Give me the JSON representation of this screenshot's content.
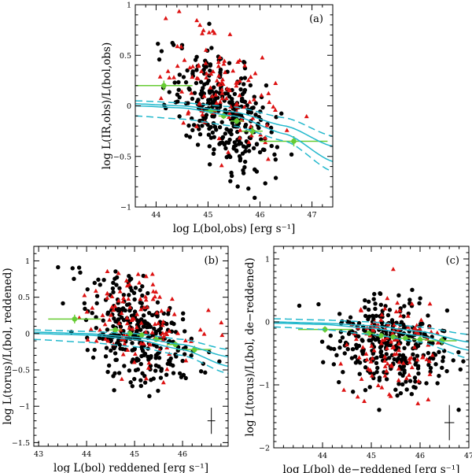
{
  "colors": {
    "black_points": "#000000",
    "red_triangles": "#dd1111",
    "green_binned": "#66cc33",
    "cyan_model": "#22b8cc"
  },
  "chart_data": [
    {
      "type": "scatter",
      "panel": "(a)",
      "xlabel": "log L(bol,obs) [erg s⁻¹]",
      "ylabel": "log L(IR,obs)/L(bol,obs)",
      "xlim": [
        43.6,
        47.4
      ],
      "ylim": [
        -1,
        1
      ],
      "xticks": [
        44,
        45,
        46,
        47
      ],
      "yticks": [
        -1,
        -0.5,
        0,
        0.5,
        1
      ],
      "ytick_labels": [
        "−1",
        "−0.5",
        "0",
        "0.5",
        "1"
      ],
      "cloud": {
        "n_black": 330,
        "n_red": 120,
        "x_center": 45.3,
        "x_sd": 0.5,
        "y_intercept": -0.05,
        "y_slope": -0.28,
        "y_sd": 0.26,
        "red_y_offset": 0.22
      },
      "binned_points": [
        {
          "x": 44.15,
          "y": 0.2,
          "xerr": 0.55,
          "yerr": 0.05
        },
        {
          "x": 45.05,
          "y": -0.05,
          "xerr": 0.12,
          "yerr": 0.03
        },
        {
          "x": 45.3,
          "y": -0.1,
          "xerr": 0.1,
          "yerr": 0.03
        },
        {
          "x": 45.55,
          "y": -0.15,
          "xerr": 0.12,
          "yerr": 0.03
        },
        {
          "x": 45.85,
          "y": -0.25,
          "xerr": 0.2,
          "yerr": 0.04
        },
        {
          "x": 46.65,
          "y": -0.35,
          "xerr": 0.65,
          "yerr": 0.05
        }
      ],
      "model_curves": [
        {
          "style": "solid",
          "x": [
            43.6,
            44.5,
            45.5,
            46.5,
            47.4
          ],
          "y": [
            0.0,
            -0.02,
            -0.1,
            -0.28,
            -0.55
          ]
        },
        {
          "style": "solid",
          "x": [
            43.6,
            44.5,
            45.5,
            46.5,
            47.4
          ],
          "y": [
            0.02,
            0.0,
            -0.06,
            -0.2,
            -0.4
          ]
        },
        {
          "style": "dashed",
          "x": [
            43.6,
            44.5,
            45.5,
            46.5,
            47.4
          ],
          "y": [
            0.05,
            0.03,
            -0.01,
            -0.12,
            -0.3
          ]
        },
        {
          "style": "dashed",
          "x": [
            43.6,
            44.5,
            45.5,
            46.5,
            47.4
          ],
          "y": [
            -0.1,
            -0.13,
            -0.2,
            -0.35,
            -0.65
          ]
        }
      ],
      "error_cross": null
    },
    {
      "type": "scatter",
      "panel": "(b)",
      "xlabel": "log L(bol) reddened [erg s⁻¹]",
      "ylabel": "log L(torus)/L(bol, reddened)",
      "xlim": [
        42.9,
        46.95
      ],
      "ylim": [
        -1.55,
        1.2
      ],
      "xticks": [
        43,
        44,
        45,
        46
      ],
      "yticks": [
        -1.5,
        -1,
        -0.5,
        0,
        0.5,
        1
      ],
      "ytick_labels": [
        "−1.5",
        "−1",
        "−0.5",
        "0",
        "0.5",
        "1"
      ],
      "cloud": {
        "n_black": 320,
        "n_red": 115,
        "x_center": 45.1,
        "x_sd": 0.6,
        "y_intercept": 0.0,
        "y_slope": -0.25,
        "y_sd": 0.35,
        "red_y_offset": 0.18
      },
      "binned_points": [
        {
          "x": 43.75,
          "y": 0.2,
          "xerr": 0.55,
          "yerr": 0.06
        },
        {
          "x": 44.6,
          "y": 0.05,
          "xerr": 0.12,
          "yerr": 0.04
        },
        {
          "x": 44.9,
          "y": 0.0,
          "xerr": 0.1,
          "yerr": 0.03
        },
        {
          "x": 45.15,
          "y": -0.02,
          "xerr": 0.1,
          "yerr": 0.03
        },
        {
          "x": 45.45,
          "y": -0.08,
          "xerr": 0.12,
          "yerr": 0.03
        },
        {
          "x": 45.85,
          "y": -0.15,
          "xerr": 0.18,
          "yerr": 0.04
        },
        {
          "x": 46.25,
          "y": -0.22,
          "xerr": 0.35,
          "yerr": 0.05
        }
      ],
      "model_curves": [
        {
          "style": "solid",
          "x": [
            42.9,
            44.0,
            45.0,
            46.0,
            46.95
          ],
          "y": [
            0.0,
            -0.02,
            -0.08,
            -0.22,
            -0.45
          ]
        },
        {
          "style": "solid",
          "x": [
            42.9,
            44.0,
            45.0,
            46.0,
            46.95
          ],
          "y": [
            0.02,
            0.0,
            -0.05,
            -0.15,
            -0.32
          ]
        },
        {
          "style": "dashed",
          "x": [
            42.9,
            44.0,
            45.0,
            46.0,
            46.95
          ],
          "y": [
            0.05,
            0.03,
            0.0,
            -0.08,
            -0.22
          ]
        },
        {
          "style": "dashed",
          "x": [
            42.9,
            44.0,
            45.0,
            46.0,
            46.95
          ],
          "y": [
            -0.08,
            -0.12,
            -0.18,
            -0.3,
            -0.55
          ]
        }
      ],
      "error_cross": {
        "x": 46.6,
        "y": -1.2,
        "xerr": 0.08,
        "yerr": 0.18
      }
    },
    {
      "type": "scatter",
      "panel": "(c)",
      "xlabel": "log L(bol) de−reddened [erg s⁻¹]",
      "ylabel": "log L(torus)/L(bol, de−reddened)",
      "xlim": [
        43.0,
        47.0
      ],
      "ylim": [
        -2.0,
        1.2
      ],
      "xticks": [
        44,
        45,
        46,
        47
      ],
      "yticks": [
        -2,
        -1,
        0,
        1
      ],
      "ytick_labels": [
        "−2",
        "−1",
        "0",
        "1"
      ],
      "cloud": {
        "n_black": 320,
        "n_red": 115,
        "x_center": 45.4,
        "x_sd": 0.55,
        "y_intercept": -0.35,
        "y_slope": -0.05,
        "y_sd": 0.38,
        "red_y_offset": -0.05
      },
      "binned_points": [
        {
          "x": 44.05,
          "y": -0.12,
          "xerr": 0.55,
          "yerr": 0.05
        },
        {
          "x": 44.95,
          "y": -0.18,
          "xerr": 0.12,
          "yerr": 0.04
        },
        {
          "x": 45.2,
          "y": -0.22,
          "xerr": 0.1,
          "yerr": 0.04
        },
        {
          "x": 45.45,
          "y": -0.24,
          "xerr": 0.1,
          "yerr": 0.04
        },
        {
          "x": 45.7,
          "y": -0.26,
          "xerr": 0.12,
          "yerr": 0.04
        },
        {
          "x": 46.0,
          "y": -0.28,
          "xerr": 0.15,
          "yerr": 0.05
        },
        {
          "x": 46.45,
          "y": -0.3,
          "xerr": 0.3,
          "yerr": 0.06
        }
      ],
      "model_curves": [
        {
          "style": "solid",
          "x": [
            43.0,
            44.0,
            45.0,
            46.0,
            47.0
          ],
          "y": [
            -0.02,
            -0.04,
            -0.1,
            -0.22,
            -0.45
          ]
        },
        {
          "style": "solid",
          "x": [
            43.0,
            44.0,
            45.0,
            46.0,
            47.0
          ],
          "y": [
            0.0,
            -0.02,
            -0.06,
            -0.15,
            -0.32
          ]
        },
        {
          "style": "dashed",
          "x": [
            43.0,
            44.0,
            45.0,
            46.0,
            47.0
          ],
          "y": [
            0.05,
            0.03,
            0.0,
            -0.08,
            -0.2
          ]
        },
        {
          "style": "dashed",
          "x": [
            43.0,
            44.0,
            45.0,
            46.0,
            47.0
          ],
          "y": [
            -0.08,
            -0.12,
            -0.2,
            -0.32,
            -0.58
          ]
        }
      ],
      "error_cross": {
        "x": 46.6,
        "y": -1.6,
        "xerr": 0.1,
        "yerr": 0.28
      }
    }
  ]
}
